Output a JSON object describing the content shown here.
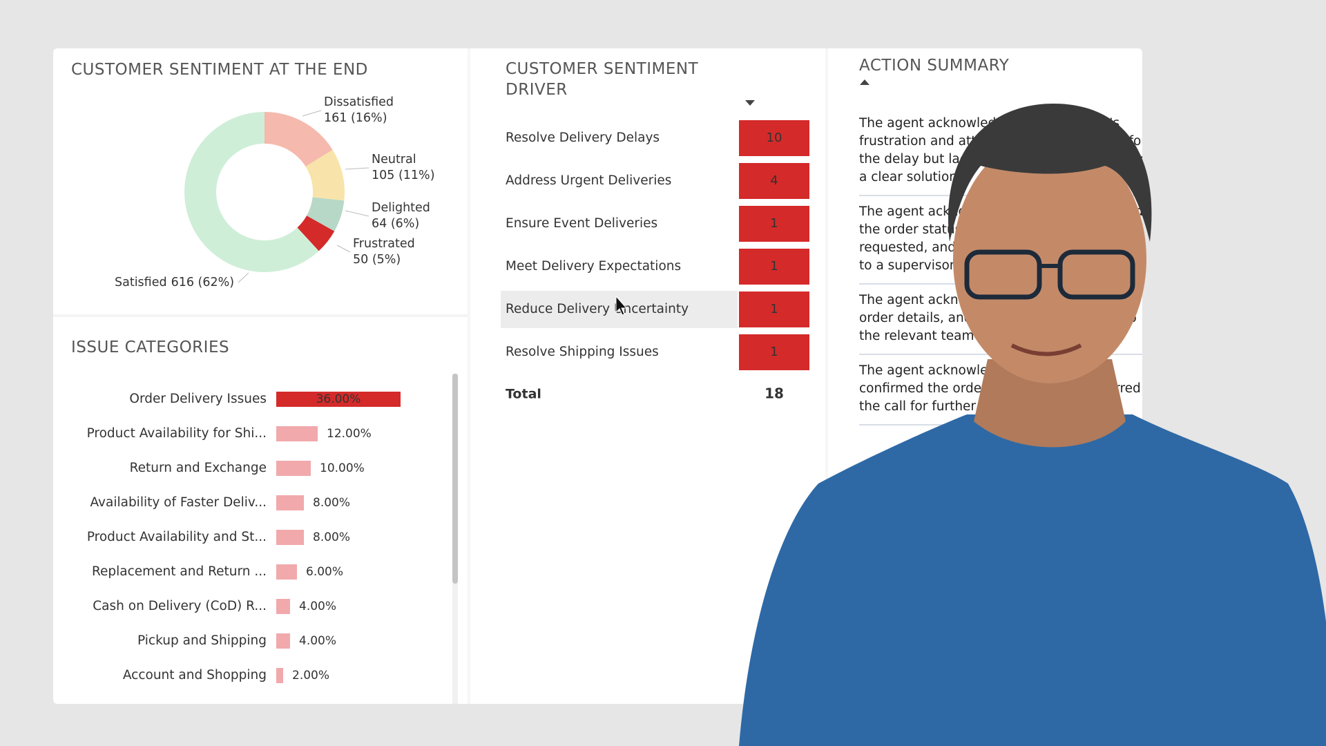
{
  "chart_data": [
    {
      "type": "donut",
      "title": "CUSTOMER SENTIMENT AT THE END",
      "categories": [
        "Dissatisfied",
        "Neutral",
        "Delighted",
        "Frustrated",
        "Satisfied"
      ],
      "values": [
        161,
        105,
        64,
        50,
        616
      ],
      "value_labels": [
        "161 (16%)",
        "105 (11%)",
        "64 (6%)",
        "50 (5%)",
        "616 (62%)"
      ],
      "colors": [
        "#f6b9ad",
        "#f8e4aa",
        "#b7d8c6",
        "#d42a2a",
        "#cfeed8"
      ]
    },
    {
      "type": "bar",
      "orientation": "horizontal",
      "title": "ISSUE CATEGORIES",
      "categories": [
        "Order Delivery Issues",
        "Product Availability for Shi...",
        "Return and Exchange",
        "Availability of Faster Deliv...",
        "Product Availability and St...",
        "Replacement and Return ...",
        "Cash on Delivery (CoD) R...",
        "Pickup and Shipping",
        "Account and Shopping"
      ],
      "values": [
        36,
        12,
        10,
        8,
        8,
        6,
        4,
        4,
        2
      ],
      "value_labels": [
        "36.00%",
        "12.00%",
        "10.00%",
        "8.00%",
        "8.00%",
        "6.00%",
        "4.00%",
        "4.00%",
        "2.00%"
      ],
      "colors": [
        "#d42a2a",
        "#f1a9ac",
        "#f1a9ac",
        "#f1a9ac",
        "#f1a9ac",
        "#f1a9ac",
        "#f1a9ac",
        "#f1a9ac",
        "#f1a9ac"
      ]
    }
  ],
  "driver": {
    "title": "CUSTOMER SENTIMENT DRIVER",
    "rows": [
      {
        "label": "Resolve Delivery Delays",
        "count": "10"
      },
      {
        "label": "Address Urgent Deliveries",
        "count": "4"
      },
      {
        "label": "Ensure Event Deliveries",
        "count": "1"
      },
      {
        "label": "Meet Delivery Expectations",
        "count": "1"
      },
      {
        "label": "Reduce Delivery Uncertainty",
        "count": "1"
      },
      {
        "label": "Resolve Shipping Issues",
        "count": "1"
      }
    ],
    "total_label": "Total",
    "total": "18"
  },
  "action_summary": {
    "title": "ACTION SUMMARY",
    "paragraphs": [
      "The agent acknowledged the customer's frustration and attempted an explanation for the delay but lacked specific information and a clear solution.",
      "The agent acknowledged the issue, checked the order status, offered a refund when requested, and ultimately escalated the call to a supervisor.",
      "The agent acknowledged the issue, verified order details, and escalated the problem to the relevant team for investigation.",
      "The agent acknowledged the issue, confirmed the order details, and transferred the call for further assistance."
    ]
  }
}
